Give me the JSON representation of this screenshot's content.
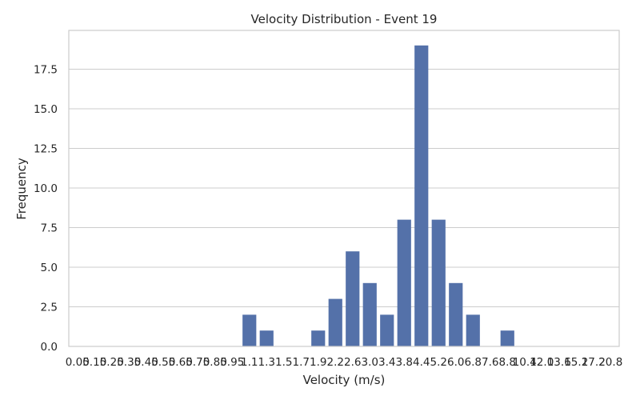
{
  "chart_data": {
    "type": "bar",
    "title": "Velocity Distribution - Event 19",
    "xlabel": "Velocity (m/s)",
    "ylabel": "Frequency",
    "ylim": [
      0,
      19.95
    ],
    "yticks": [
      0,
      2.5,
      5,
      7.5,
      10,
      12.5,
      15,
      17.5
    ],
    "ytick_labels": [
      "0.0",
      "2.5",
      "5.0",
      "7.5",
      "10.0",
      "12.5",
      "15.0",
      "17.5"
    ],
    "grid": true,
    "categories": [
      "0.05",
      "0.15",
      "0.25",
      "0.35",
      "0.45",
      "0.55",
      "0.65",
      "0.75",
      "0.85",
      "0.95",
      "1.1",
      "1.3",
      "1.5",
      "1.7",
      "1.9",
      "2.2",
      "2.6",
      "3.0",
      "3.4",
      "3.8",
      "4.4",
      "5.2",
      "6.0",
      "6.8",
      "7.6",
      "8.8",
      "10.4",
      "12.0",
      "13.6",
      "15.2",
      "17.2",
      "20.8"
    ],
    "values": [
      0,
      0,
      0,
      0,
      0,
      0,
      0,
      0,
      0,
      0,
      2,
      1,
      0,
      0,
      1,
      3,
      6,
      4,
      2,
      8,
      19,
      8,
      4,
      2,
      0,
      1,
      0,
      0,
      0,
      0,
      0,
      0
    ],
    "bar_color": "#5471a9"
  }
}
